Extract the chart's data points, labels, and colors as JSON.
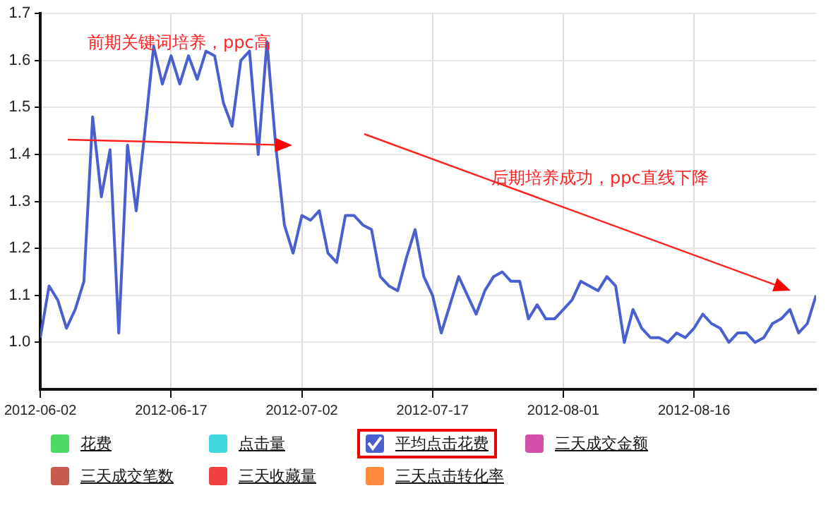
{
  "chart_data": {
    "type": "line",
    "x": [
      "2012-06-02",
      "2012-06-03",
      "2012-06-04",
      "2012-06-05",
      "2012-06-06",
      "2012-06-07",
      "2012-06-08",
      "2012-06-09",
      "2012-06-10",
      "2012-06-11",
      "2012-06-12",
      "2012-06-13",
      "2012-06-14",
      "2012-06-15",
      "2012-06-16",
      "2012-06-17",
      "2012-06-18",
      "2012-06-19",
      "2012-06-20",
      "2012-06-21",
      "2012-06-22",
      "2012-06-23",
      "2012-06-24",
      "2012-06-25",
      "2012-06-26",
      "2012-06-27",
      "2012-06-28",
      "2012-06-29",
      "2012-06-30",
      "2012-07-01",
      "2012-07-02",
      "2012-07-03",
      "2012-07-04",
      "2012-07-05",
      "2012-07-06",
      "2012-07-07",
      "2012-07-08",
      "2012-07-09",
      "2012-07-10",
      "2012-07-11",
      "2012-07-12",
      "2012-07-13",
      "2012-07-14",
      "2012-07-15",
      "2012-07-16",
      "2012-07-17",
      "2012-07-18",
      "2012-07-19",
      "2012-07-20",
      "2012-07-21",
      "2012-07-22",
      "2012-07-23",
      "2012-07-24",
      "2012-07-25",
      "2012-07-26",
      "2012-07-27",
      "2012-07-28",
      "2012-07-29",
      "2012-07-30",
      "2012-07-31",
      "2012-08-01",
      "2012-08-02",
      "2012-08-03",
      "2012-08-04",
      "2012-08-05",
      "2012-08-06",
      "2012-08-07",
      "2012-08-08",
      "2012-08-09",
      "2012-08-10",
      "2012-08-11",
      "2012-08-12",
      "2012-08-13",
      "2012-08-14",
      "2012-08-15",
      "2012-08-16",
      "2012-08-17",
      "2012-08-18",
      "2012-08-19",
      "2012-08-20",
      "2012-08-21",
      "2012-08-22",
      "2012-08-23",
      "2012-08-24",
      "2012-08-25",
      "2012-08-26",
      "2012-08-27",
      "2012-08-28",
      "2012-08-29",
      "2012-08-30"
    ],
    "series": [
      {
        "name": "花费",
        "color": "#4cd964",
        "values": [
          null,
          null,
          null,
          null,
          null,
          null,
          null,
          null,
          null,
          null,
          null,
          null,
          null,
          null,
          null,
          null,
          null,
          null,
          null,
          null,
          null,
          null,
          null,
          null,
          null,
          null,
          null,
          null,
          null,
          null,
          null,
          null,
          null,
          null,
          null,
          null,
          null,
          null,
          null,
          null,
          null,
          null,
          null,
          null,
          null,
          null,
          null,
          null,
          null,
          null,
          null,
          null,
          null,
          null,
          null,
          null,
          null,
          null,
          null,
          null,
          null,
          null,
          null,
          null,
          null,
          null,
          null,
          null,
          null,
          null,
          null,
          null,
          null,
          null,
          null,
          null,
          null,
          null,
          null,
          null,
          null,
          null,
          null,
          null,
          null,
          null,
          null,
          null,
          null,
          null
        ]
      },
      {
        "name": "点击量",
        "color": "#40d8dc",
        "values": [
          null,
          null,
          null,
          null,
          null,
          null,
          null,
          null,
          null,
          null,
          null,
          null,
          null,
          null,
          null,
          null,
          null,
          null,
          null,
          null,
          null,
          null,
          null,
          null,
          null,
          null,
          null,
          null,
          null,
          null,
          null,
          null,
          null,
          null,
          null,
          null,
          null,
          null,
          null,
          null,
          null,
          null,
          null,
          null,
          null,
          null,
          null,
          null,
          null,
          null,
          null,
          null,
          null,
          null,
          null,
          null,
          null,
          null,
          null,
          null,
          null,
          null,
          null,
          null,
          null,
          null,
          null,
          null,
          null,
          null,
          null,
          null,
          null,
          null,
          null,
          null,
          null,
          null,
          null,
          null,
          null,
          null,
          null,
          null,
          null,
          null,
          null,
          null,
          null,
          null
        ]
      },
      {
        "name": "平均点击花费",
        "color": "#4a5fd0",
        "values": [
          1.01,
          1.12,
          1.09,
          1.03,
          1.07,
          1.13,
          1.48,
          1.31,
          1.41,
          1.02,
          1.42,
          1.28,
          1.45,
          1.63,
          1.55,
          1.61,
          1.55,
          1.61,
          1.56,
          1.62,
          1.61,
          1.51,
          1.46,
          1.6,
          1.62,
          1.4,
          1.64,
          1.42,
          1.25,
          1.19,
          1.27,
          1.26,
          1.28,
          1.19,
          1.17,
          1.27,
          1.27,
          1.25,
          1.24,
          1.14,
          1.12,
          1.11,
          1.18,
          1.24,
          1.14,
          1.1,
          1.02,
          1.08,
          1.14,
          1.1,
          1.06,
          1.11,
          1.14,
          1.15,
          1.13,
          1.13,
          1.05,
          1.08,
          1.05,
          1.05,
          1.07,
          1.09,
          1.13,
          1.12,
          1.11,
          1.14,
          1.12,
          1.0,
          1.07,
          1.03,
          1.01,
          1.01,
          1.0,
          1.02,
          1.01,
          1.03,
          1.06,
          1.04,
          1.03,
          1.0,
          1.02,
          1.02,
          1.0,
          1.01,
          1.04,
          1.05,
          1.07,
          1.02,
          1.04,
          1.1
        ]
      },
      {
        "name": "三天成交金额",
        "color": "#d44fa8",
        "values": [
          null,
          null,
          null,
          null,
          null,
          null,
          null,
          null,
          null,
          null,
          null,
          null,
          null,
          null,
          null,
          null,
          null,
          null,
          null,
          null,
          null,
          null,
          null,
          null,
          null,
          null,
          null,
          null,
          null,
          null,
          null,
          null,
          null,
          null,
          null,
          null,
          null,
          null,
          null,
          null,
          null,
          null,
          null,
          null,
          null,
          null,
          null,
          null,
          null,
          null,
          null,
          null,
          null,
          null,
          null,
          null,
          null,
          null,
          null,
          null,
          null,
          null,
          null,
          null,
          null,
          null,
          null,
          null,
          null,
          null,
          null,
          null,
          null,
          null,
          null,
          null,
          null,
          null,
          null,
          null,
          null,
          null,
          null,
          null,
          null,
          null,
          null,
          null,
          null,
          null
        ]
      },
      {
        "name": "三天成交笔数",
        "color": "#c85a50",
        "values": [
          null,
          null,
          null,
          null,
          null,
          null,
          null,
          null,
          null,
          null,
          null,
          null,
          null,
          null,
          null,
          null,
          null,
          null,
          null,
          null,
          null,
          null,
          null,
          null,
          null,
          null,
          null,
          null,
          null,
          null,
          null,
          null,
          null,
          null,
          null,
          null,
          null,
          null,
          null,
          null,
          null,
          null,
          null,
          null,
          null,
          null,
          null,
          null,
          null,
          null,
          null,
          null,
          null,
          null,
          null,
          null,
          null,
          null,
          null,
          null,
          null,
          null,
          null,
          null,
          null,
          null,
          null,
          null,
          null,
          null,
          null,
          null,
          null,
          null,
          null,
          null,
          null,
          null,
          null,
          null,
          null,
          null,
          null,
          null,
          null,
          null,
          null,
          null,
          null,
          null
        ]
      },
      {
        "name": "三天收藏量",
        "color": "#f04040",
        "values": [
          null,
          null,
          null,
          null,
          null,
          null,
          null,
          null,
          null,
          null,
          null,
          null,
          null,
          null,
          null,
          null,
          null,
          null,
          null,
          null,
          null,
          null,
          null,
          null,
          null,
          null,
          null,
          null,
          null,
          null,
          null,
          null,
          null,
          null,
          null,
          null,
          null,
          null,
          null,
          null,
          null,
          null,
          null,
          null,
          null,
          null,
          null,
          null,
          null,
          null,
          null,
          null,
          null,
          null,
          null,
          null,
          null,
          null,
          null,
          null,
          null,
          null,
          null,
          null,
          null,
          null,
          null,
          null,
          null,
          null,
          null,
          null,
          null,
          null,
          null,
          null,
          null,
          null,
          null,
          null,
          null,
          null,
          null,
          null,
          null,
          null,
          null,
          null,
          null,
          null
        ]
      },
      {
        "name": "三天点击转化率",
        "color": "#ff8a3d",
        "values": [
          null,
          null,
          null,
          null,
          null,
          null,
          null,
          null,
          null,
          null,
          null,
          null,
          null,
          null,
          null,
          null,
          null,
          null,
          null,
          null,
          null,
          null,
          null,
          null,
          null,
          null,
          null,
          null,
          null,
          null,
          null,
          null,
          null,
          null,
          null,
          null,
          null,
          null,
          null,
          null,
          null,
          null,
          null,
          null,
          null,
          null,
          null,
          null,
          null,
          null,
          null,
          null,
          null,
          null,
          null,
          null,
          null,
          null,
          null,
          null,
          null,
          null,
          null,
          null,
          null,
          null,
          null,
          null,
          null,
          null,
          null,
          null,
          null,
          null,
          null,
          null,
          null,
          null,
          null,
          null,
          null,
          null,
          null,
          null,
          null,
          null,
          null,
          null,
          null,
          null
        ]
      }
    ],
    "xlim": [
      "2012-06-02",
      "2012-08-30"
    ],
    "xticks": [
      "2012-06-02",
      "2012-06-17",
      "2012-07-02",
      "2012-07-17",
      "2012-08-01",
      "2012-08-16"
    ],
    "ylim": [
      0.9,
      1.7
    ],
    "yticks": [
      {
        "value": 1,
        "label": "1.0"
      },
      1.1,
      1.2,
      1.3,
      1.4,
      1.5,
      1.6,
      1.7
    ],
    "grid": true,
    "legend": "bottom",
    "marker": "none",
    "line_style": "solid",
    "annotations": [
      "前期关键词培养，ppc高",
      "后期培养成功，ppc直线下降"
    ]
  }
}
